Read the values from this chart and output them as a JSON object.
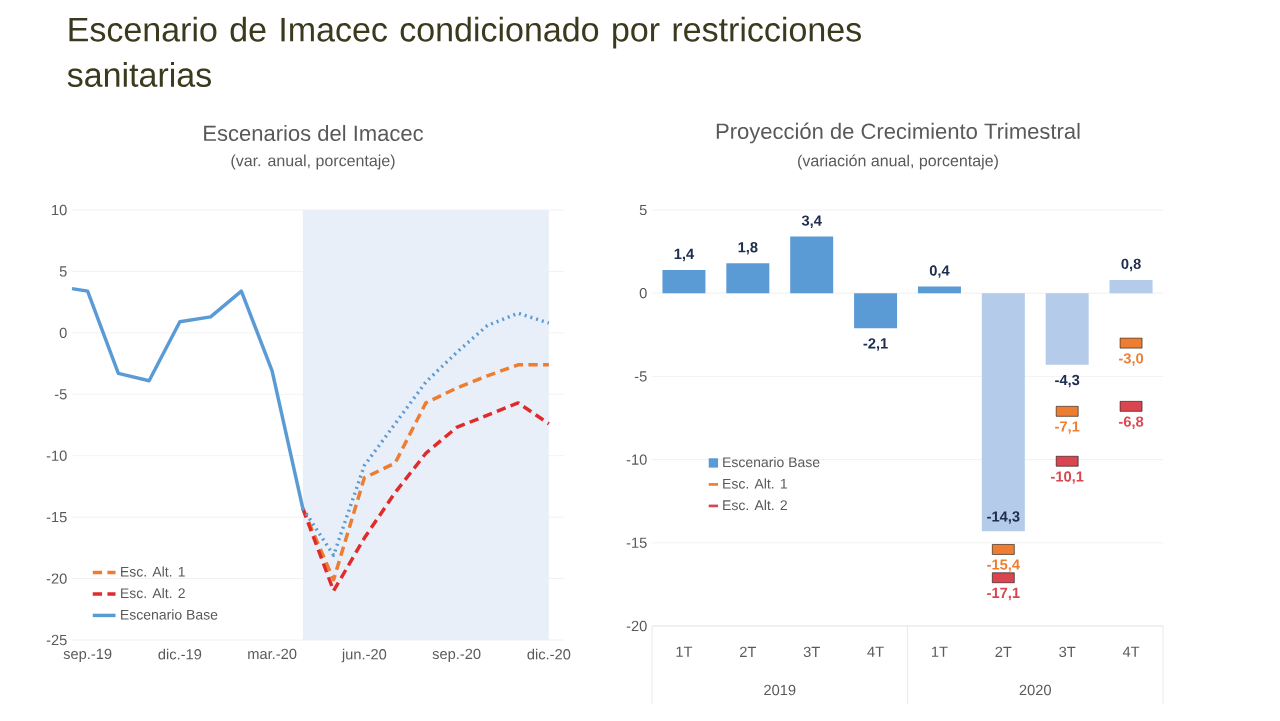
{
  "chart_data": [
    {
      "type": "other",
      "title": "Escenario de Imacec condicionado por restricciones sanitarias"
    },
    {
      "type": "line",
      "title": "Escenarios del Imacec",
      "subtitle": "(var. anual, porcentaje)",
      "xlim": [
        "2019-08-16",
        "2020-12-16"
      ],
      "xticks": [
        {
          "value": "2019-09",
          "label": "sep.-19"
        },
        {
          "value": "2019-12",
          "label": "dic.-19"
        },
        {
          "value": "2020-03",
          "label": "mar.-20"
        },
        {
          "value": "2020-06",
          "label": "jun.-20"
        },
        {
          "value": "2020-09",
          "label": "sep.-20"
        },
        {
          "value": "2020-12",
          "label": "dic.-20"
        }
      ],
      "ylim": [
        -25,
        10
      ],
      "yticks": [
        -25,
        -20,
        -15,
        -10,
        -5,
        0,
        5,
        10
      ],
      "grid": "y",
      "legend": "bottom left",
      "bands": [
        {
          "axis": "x",
          "from": "2020-04",
          "to": "2020-12",
          "label": null,
          "color": "#e9eff9"
        }
      ],
      "series": [
        {
          "name": "Esc. Alt. 1",
          "color": "#ed7d31",
          "line_style": "dashed",
          "x": [
            "2020-04",
            "2020-05",
            "2020-06",
            "2020-07",
            "2020-08",
            "2020-09",
            "2020-10",
            "2020-11",
            "2020-12"
          ],
          "values": [
            -14.3,
            -20.1,
            -11.8,
            -10.6,
            -5.7,
            -4.5,
            -3.5,
            -2.6,
            -2.6
          ]
        },
        {
          "name": "Esc. Alt. 2",
          "color": "#e02b2b",
          "line_style": "dashed",
          "x": [
            "2020-04",
            "2020-05",
            "2020-06",
            "2020-07",
            "2020-08",
            "2020-09",
            "2020-10",
            "2020-11",
            "2020-12"
          ],
          "values": [
            -14.3,
            -21.0,
            -16.7,
            -13.0,
            -9.8,
            -7.7,
            -6.7,
            -5.7,
            -7.4
          ]
        },
        {
          "name": "Escenario Base",
          "color": "#5b9bd5",
          "line_style": "solid",
          "x": [
            "2019-08-16",
            "2019-09",
            "2019-10",
            "2019-11",
            "2019-12",
            "2020-01",
            "2020-02",
            "2020-03",
            "2020-04"
          ],
          "values": [
            3.6,
            3.4,
            -3.3,
            -3.9,
            0.9,
            1.3,
            3.4,
            -3.1,
            -14.3
          ]
        },
        {
          "color": "#5b9bd5",
          "line_style": "dotted",
          "x": [
            "2020-04",
            "2020-05",
            "2020-06",
            "2020-07",
            "2020-08",
            "2020-09",
            "2020-10",
            "2020-11",
            "2020-12"
          ],
          "values": [
            -14.3,
            -18.1,
            -10.8,
            -7.4,
            -4.0,
            -1.6,
            0.6,
            1.6,
            0.8
          ]
        }
      ]
    },
    {
      "type": "bar",
      "title": "Proyección de Crecimiento Trimestral",
      "subtitle": "(variación anual, porcentaje)",
      "categories": [
        "1T",
        "2T",
        "3T",
        "4T",
        "1T",
        "2T",
        "3T",
        "4T"
      ],
      "annotations": [
        "2019",
        "2020"
      ],
      "ylim": [
        -20,
        5
      ],
      "yticks": [
        -20,
        -15,
        -10,
        -5,
        0,
        5
      ],
      "grid": "y",
      "legend": "left",
      "series": [
        {
          "name": "Escenario Base",
          "type": "bar",
          "color": "#5b9bd5",
          "colors": [
            "#5b9bd5",
            "#5b9bd5",
            "#5b9bd5",
            "#5b9bd5",
            "#5b9bd5",
            "#b4cbe9",
            "#b4cbe9",
            "#b4cbe9"
          ],
          "values": [
            1.4,
            1.8,
            3.4,
            -2.1,
            0.4,
            -14.3,
            -4.3,
            0.8
          ],
          "value_labels": [
            "1,4",
            "1,8",
            "3,4",
            "-2,1",
            "0,4",
            "-14,3",
            "-4,3",
            "0,8"
          ]
        },
        {
          "name": "Esc. Alt. 1",
          "type": "scatter",
          "marker": "square",
          "color": "#ed7d31",
          "values": [
            null,
            null,
            null,
            null,
            null,
            -15.4,
            -7.1,
            -3.0
          ],
          "value_labels": [
            null,
            null,
            null,
            null,
            null,
            "-15,4",
            "-7,1",
            "-3,0"
          ]
        },
        {
          "name": "Esc. Alt. 2",
          "type": "scatter",
          "marker": "square",
          "color": "#d9464f",
          "values": [
            null,
            null,
            null,
            null,
            null,
            -17.1,
            -10.1,
            -6.8
          ],
          "value_labels": [
            null,
            null,
            null,
            null,
            null,
            "-17,1",
            "-10,1",
            "-6,8"
          ]
        }
      ]
    }
  ]
}
